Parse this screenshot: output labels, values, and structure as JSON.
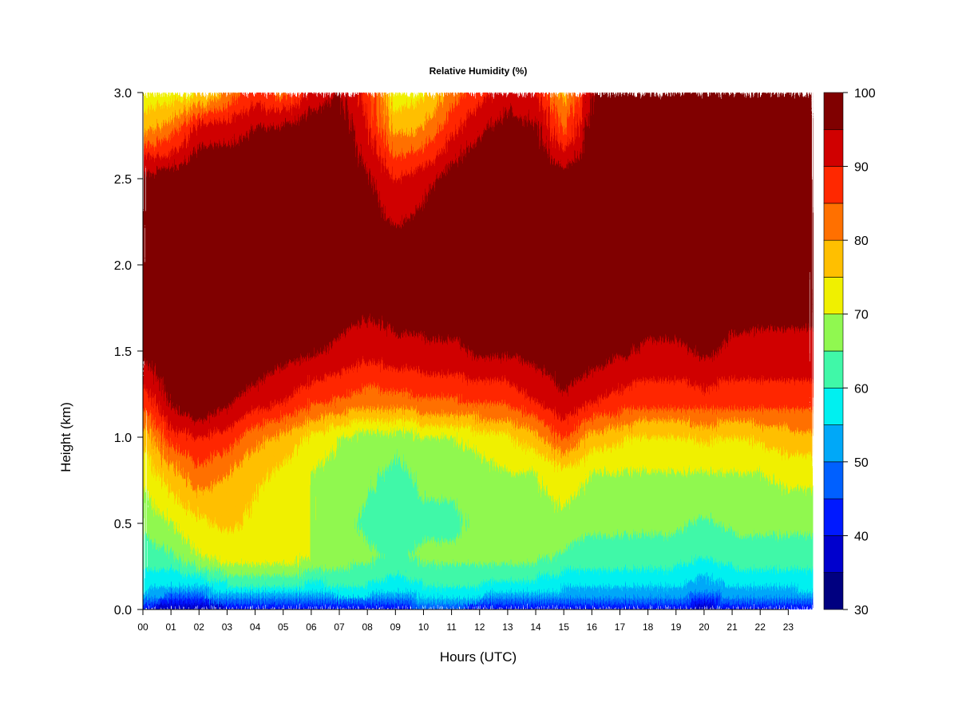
{
  "chart_data": {
    "type": "heatmap",
    "title": "Relative Humidity (%)",
    "xlabel": "Hours (UTC)",
    "ylabel": "Height (km)",
    "xlim": [
      0,
      23.9
    ],
    "ylim": [
      0.0,
      3.0
    ],
    "x_ticks": [
      "00",
      "01",
      "02",
      "03",
      "04",
      "05",
      "06",
      "07",
      "08",
      "09",
      "10",
      "11",
      "12",
      "13",
      "14",
      "15",
      "16",
      "17",
      "18",
      "19",
      "20",
      "21",
      "22",
      "23"
    ],
    "y_ticks": [
      "0.0",
      "0.5",
      "1.0",
      "1.5",
      "2.0",
      "2.5",
      "3.0"
    ],
    "colorbar": {
      "range": [
        30,
        100
      ],
      "ticks": [
        "30",
        "40",
        "50",
        "60",
        "70",
        "80",
        "90",
        "100"
      ],
      "bins": [
        30,
        35,
        40,
        45,
        50,
        55,
        60,
        65,
        70,
        75,
        80,
        85,
        90,
        95,
        100
      ],
      "colors": [
        "#000080",
        "#0000CD",
        "#0019FF",
        "#0060FF",
        "#00A8F8",
        "#00F0F0",
        "#40F8A8",
        "#90F850",
        "#F0F000",
        "#FFBF00",
        "#FF7000",
        "#FF2800",
        "#D00000",
        "#800000"
      ]
    },
    "heights_km": [
      0.0,
      0.1,
      0.3,
      0.5,
      0.8,
      1.0,
      1.2,
      1.5,
      2.0,
      2.5,
      2.8,
      3.0
    ],
    "hours": [
      0,
      1,
      2,
      3,
      4,
      5,
      6,
      7,
      8,
      9,
      10,
      11,
      12,
      13,
      14,
      15,
      16,
      17,
      18,
      19,
      20,
      21,
      22,
      23,
      23.9
    ],
    "rh_profiles_percent": [
      [
        38,
        55,
        62,
        66,
        72,
        76,
        86,
        97,
        100,
        98,
        78,
        72
      ],
      [
        36,
        52,
        64,
        70,
        78,
        88,
        96,
        100,
        100,
        98,
        82,
        72
      ],
      [
        36,
        52,
        70,
        74,
        84,
        90,
        100,
        100,
        100,
        100,
        92,
        74
      ],
      [
        37,
        56,
        72,
        76,
        80,
        88,
        96,
        100,
        100,
        100,
        92,
        80
      ],
      [
        38,
        58,
        72,
        74,
        76,
        82,
        92,
        100,
        100,
        100,
        95,
        88
      ],
      [
        40,
        58,
        73,
        72,
        74,
        78,
        90,
        97,
        100,
        100,
        96,
        82
      ],
      [
        40,
        56,
        70,
        70,
        70,
        74,
        86,
        96,
        100,
        100,
        98,
        92
      ],
      [
        41,
        58,
        68,
        66,
        68,
        70,
        84,
        94,
        100,
        100,
        99,
        95
      ],
      [
        41,
        58,
        66,
        64,
        66,
        68,
        82,
        92,
        100,
        96,
        90,
        88
      ],
      [
        42,
        56,
        64,
        62,
        64,
        66,
        82,
        94,
        99,
        90,
        78,
        72
      ],
      [
        43,
        58,
        66,
        64,
        66,
        70,
        84,
        94,
        100,
        93,
        80,
        74
      ],
      [
        43,
        58,
        66,
        64,
        66,
        70,
        84,
        94,
        100,
        98,
        88,
        82
      ],
      [
        42,
        58,
        66,
        66,
        68,
        72,
        86,
        96,
        100,
        100,
        94,
        88
      ],
      [
        40,
        56,
        66,
        68,
        70,
        74,
        86,
        96,
        100,
        100,
        97,
        93
      ],
      [
        40,
        56,
        66,
        68,
        70,
        78,
        90,
        97,
        100,
        100,
        96,
        90
      ],
      [
        40,
        54,
        64,
        68,
        74,
        86,
        94,
        99,
        100,
        98,
        84,
        78
      ],
      [
        40,
        54,
        62,
        66,
        70,
        78,
        90,
        98,
        100,
        100,
        98,
        95
      ],
      [
        40,
        54,
        62,
        66,
        70,
        76,
        88,
        96,
        100,
        100,
        100,
        100
      ],
      [
        39,
        54,
        62,
        66,
        70,
        74,
        86,
        94,
        100,
        100,
        100,
        100
      ],
      [
        40,
        54,
        62,
        66,
        70,
        74,
        86,
        94,
        100,
        100,
        100,
        100
      ],
      [
        36,
        50,
        60,
        64,
        70,
        76,
        88,
        96,
        100,
        100,
        100,
        100
      ],
      [
        40,
        54,
        62,
        66,
        70,
        74,
        86,
        94,
        99,
        100,
        100,
        100
      ],
      [
        40,
        54,
        62,
        66,
        70,
        76,
        86,
        94,
        98,
        100,
        100,
        100
      ],
      [
        41,
        54,
        62,
        66,
        72,
        78,
        86,
        94,
        98,
        100,
        100,
        100
      ],
      [
        42,
        55,
        62,
        66,
        72,
        78,
        86,
        94,
        98,
        100,
        100,
        100
      ]
    ],
    "grid": false,
    "legend": "colorbar right"
  }
}
